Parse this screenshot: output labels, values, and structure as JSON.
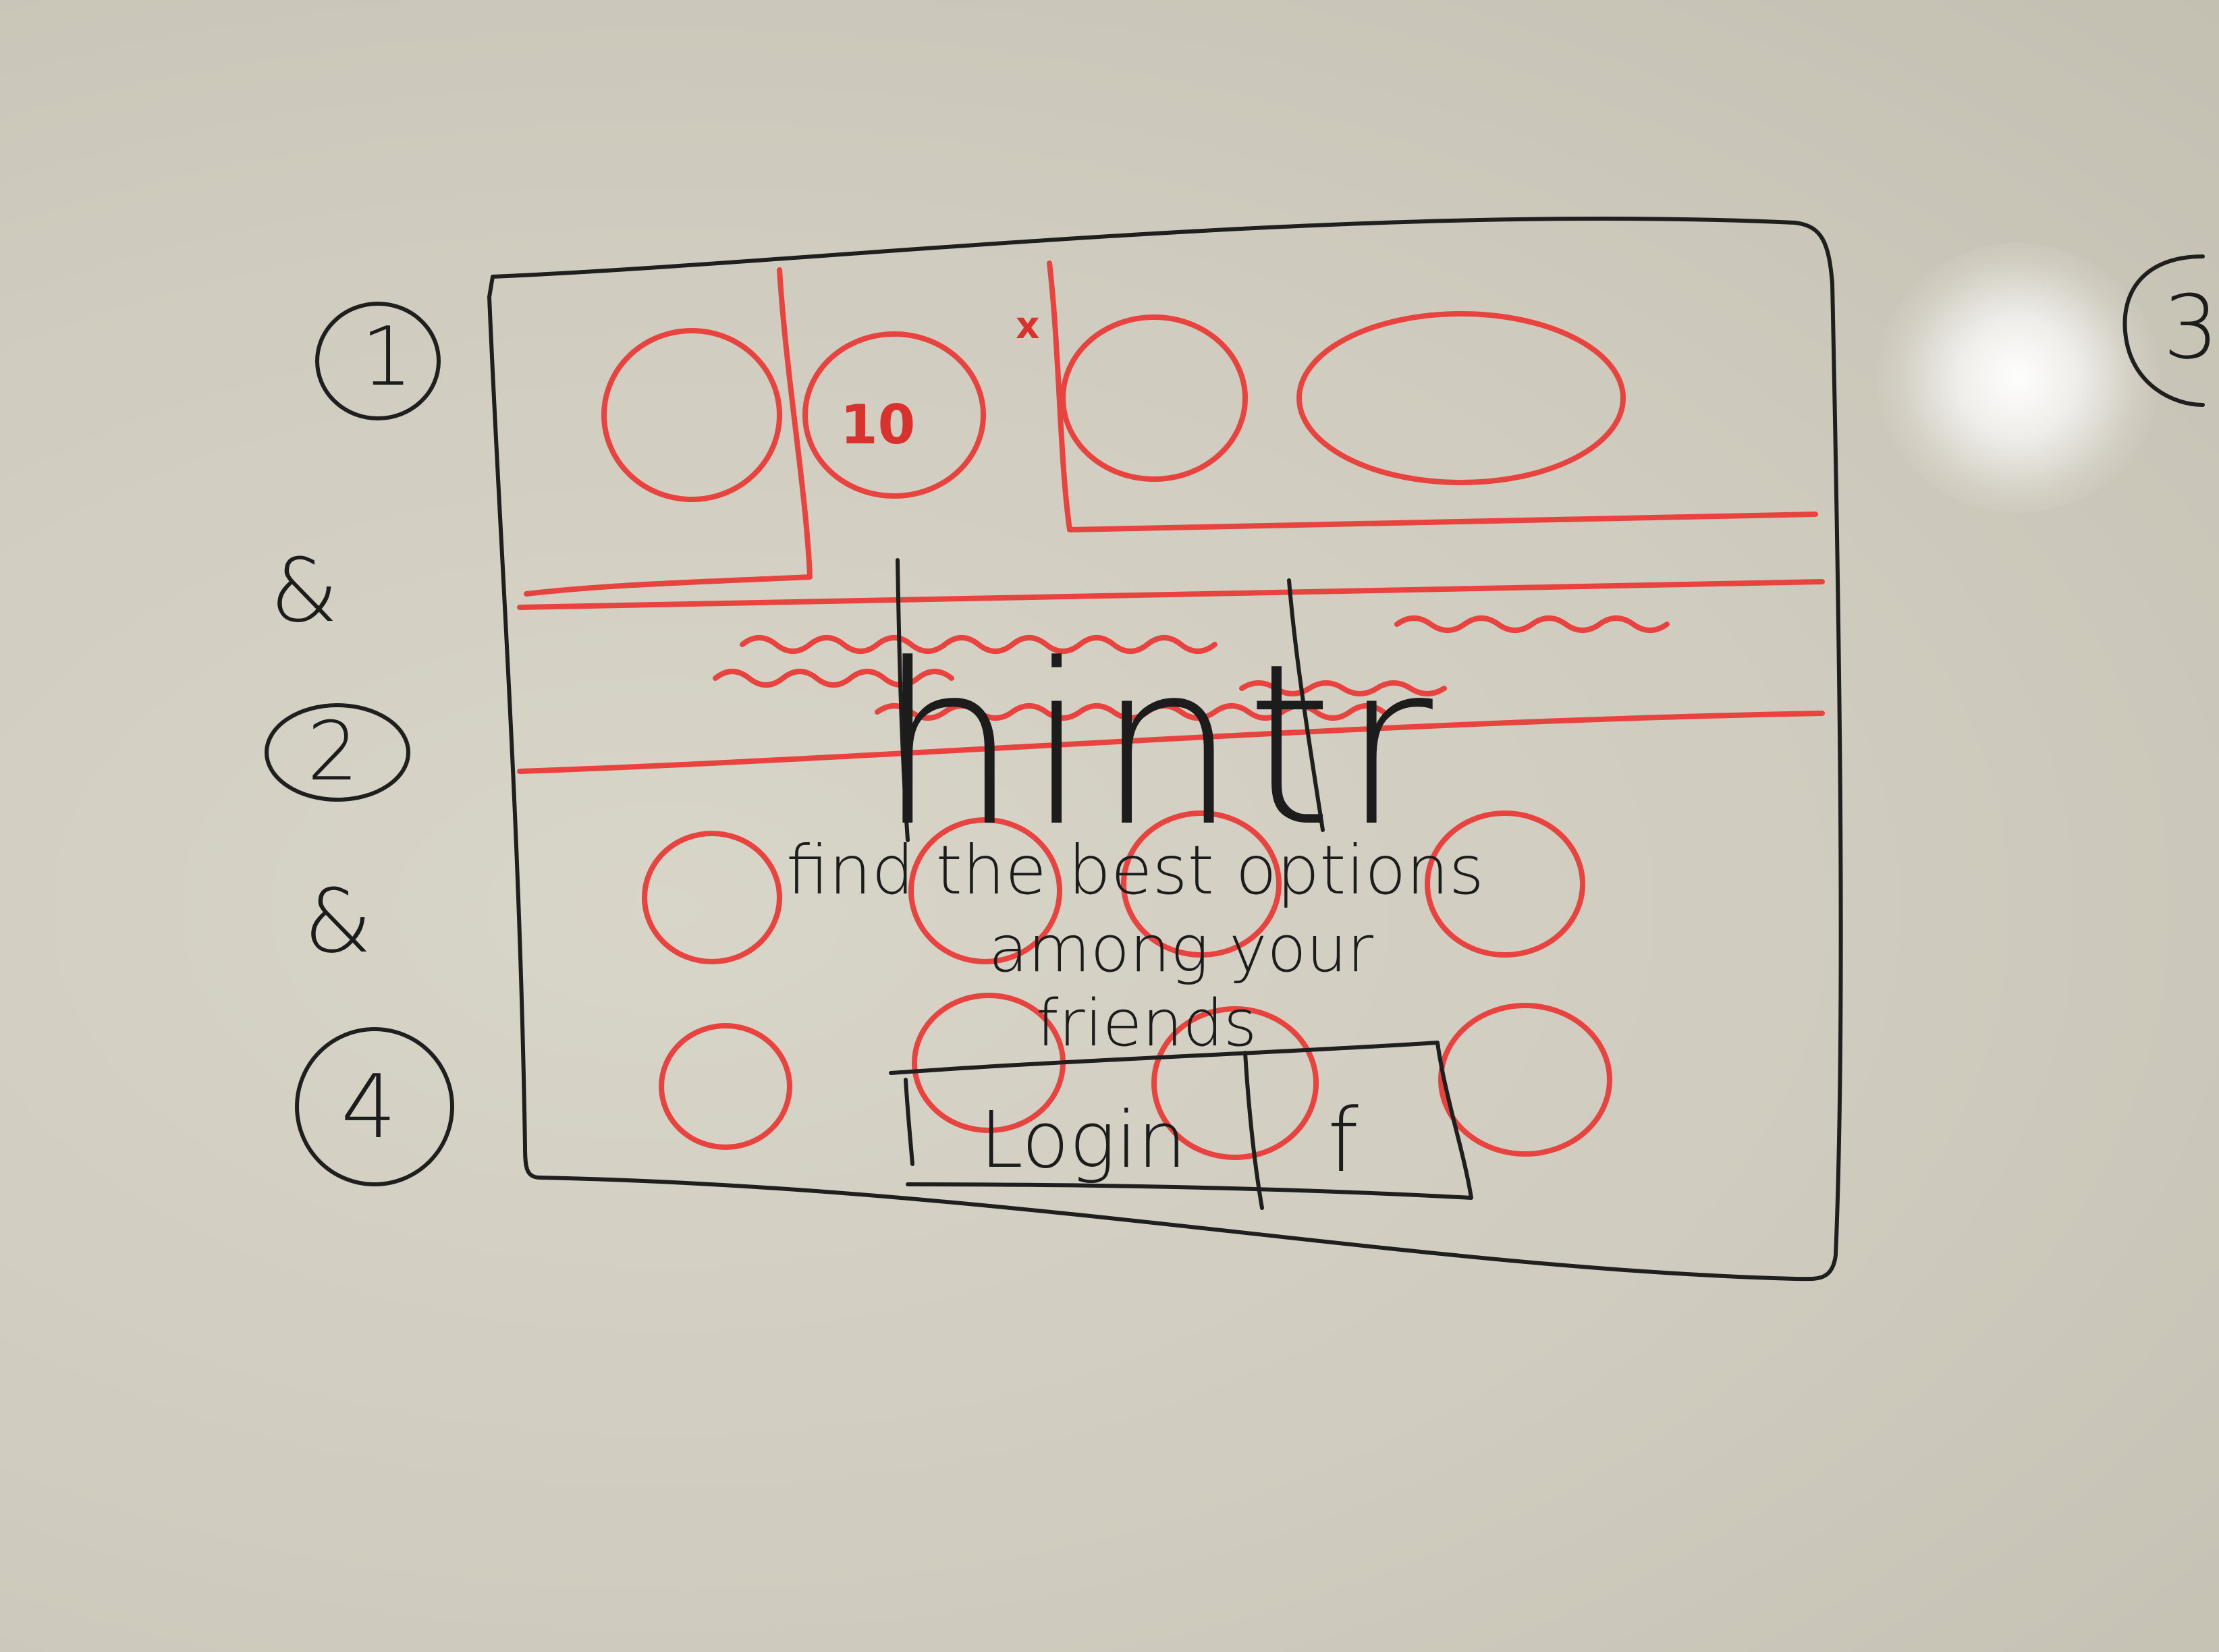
{
  "step_labels": [
    "1",
    "&",
    "2",
    "&",
    "4"
  ],
  "step_label_cut": "3",
  "badge": {
    "count": "10",
    "close_mark": "x"
  },
  "app": {
    "logo": "hintr",
    "tagline_line1": "find the best options",
    "tagline_line2": "among your",
    "tagline_line3": "friends"
  },
  "login": {
    "login_label": "Login",
    "facebook_label": "f"
  },
  "colors": {
    "ink_black": "#1f1f1f",
    "ink_red": "#e8433f",
    "board": "#d8d5c9"
  }
}
